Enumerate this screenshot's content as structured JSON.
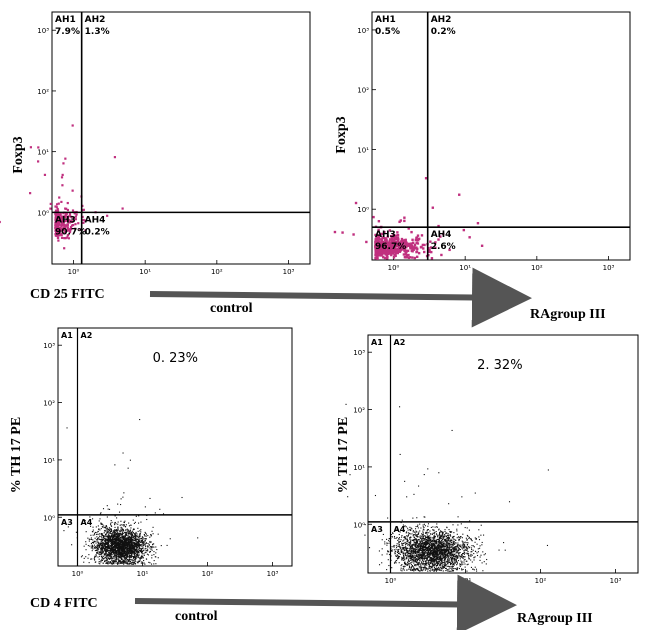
{
  "colors": {
    "magenta_dots": "#c0307f",
    "black_dots": "#111111",
    "arrow": "#555555",
    "axis": "#000000"
  },
  "chart_data": [
    {
      "type": "scatter",
      "xlabel": "",
      "ylabel": "Foxp3",
      "scale": "log",
      "x_ticks": [
        "10⁰",
        "10¹",
        "10²",
        "10³"
      ],
      "y_ticks": [
        "10⁰",
        "10¹",
        "10²",
        "10³"
      ],
      "gate_x": 1.3,
      "gate_y": 1.0,
      "quadrants": [
        {
          "label": "AH1",
          "percent": "7.9%"
        },
        {
          "label": "AH2",
          "percent": "1.3%"
        },
        {
          "label": "AH3",
          "percent": "90.7%"
        },
        {
          "label": "AH4",
          "percent": "0.2%"
        }
      ],
      "cluster": {
        "center_x": 0.6,
        "center_y": 0.7,
        "spread_x": 0.16,
        "spread_y": 0.12,
        "n": 260
      }
    },
    {
      "type": "scatter",
      "xlabel": "",
      "ylabel": "Foxp3",
      "scale": "log",
      "x_ticks": [
        "10⁰",
        "10¹",
        "10²",
        "10³"
      ],
      "y_ticks": [
        "10⁰",
        "10¹",
        "10²",
        "10³"
      ],
      "gate_x": 3.0,
      "gate_y": 0.5,
      "quadrants": [
        {
          "label": "AH1",
          "percent": "0.5%"
        },
        {
          "label": "AH2",
          "percent": "0.2%"
        },
        {
          "label": "AH3",
          "percent": "96.7%"
        },
        {
          "label": "AH4",
          "percent": "2.6%"
        }
      ],
      "cluster": {
        "center_x": 0.7,
        "center_y": 0.25,
        "spread_x": 0.3,
        "spread_y": 0.1,
        "n": 520
      }
    },
    {
      "type": "scatter",
      "xlabel": "",
      "ylabel": "% TH 17 PE",
      "scale": "log",
      "x_ticks": [
        "10⁰",
        "10¹",
        "10²",
        "10³"
      ],
      "y_ticks": [
        "10⁰",
        "10¹",
        "10²",
        "10³"
      ],
      "gate_x": 1.0,
      "gate_y": 1.1,
      "quadrants": [
        {
          "label": "A1",
          "percent": ""
        },
        {
          "label": "A2",
          "percent": "0. 23%"
        },
        {
          "label": "A3",
          "percent": ""
        },
        {
          "label": "A4",
          "percent": ""
        }
      ],
      "cluster": {
        "center_x": 4.5,
        "center_y": 0.32,
        "spread_x": 0.2,
        "spread_y": 0.16,
        "n": 2400
      }
    },
    {
      "type": "scatter",
      "xlabel": "",
      "ylabel": "% TH 17 PE",
      "scale": "log",
      "x_ticks": [
        "10⁰",
        "10¹",
        "10²",
        "10³"
      ],
      "y_ticks": [
        "10⁰",
        "10¹",
        "10²",
        "10³"
      ],
      "gate_x": 1.0,
      "gate_y": 1.1,
      "quadrants": [
        {
          "label": "A1",
          "percent": ""
        },
        {
          "label": "A2",
          "percent": "2. 32%"
        },
        {
          "label": "A3",
          "percent": ""
        },
        {
          "label": "A4",
          "percent": ""
        }
      ],
      "cluster": {
        "center_x": 3.5,
        "center_y": 0.35,
        "spread_x": 0.25,
        "spread_y": 0.18,
        "n": 2400
      }
    }
  ],
  "top_row": {
    "axis_label": "CD 25 FITC",
    "left_caption": "control",
    "right_caption": "RAgroup  III"
  },
  "bottom_row": {
    "axis_label": "CD 4   FITC",
    "left_caption": "control",
    "right_caption": "RAgroup  III"
  }
}
